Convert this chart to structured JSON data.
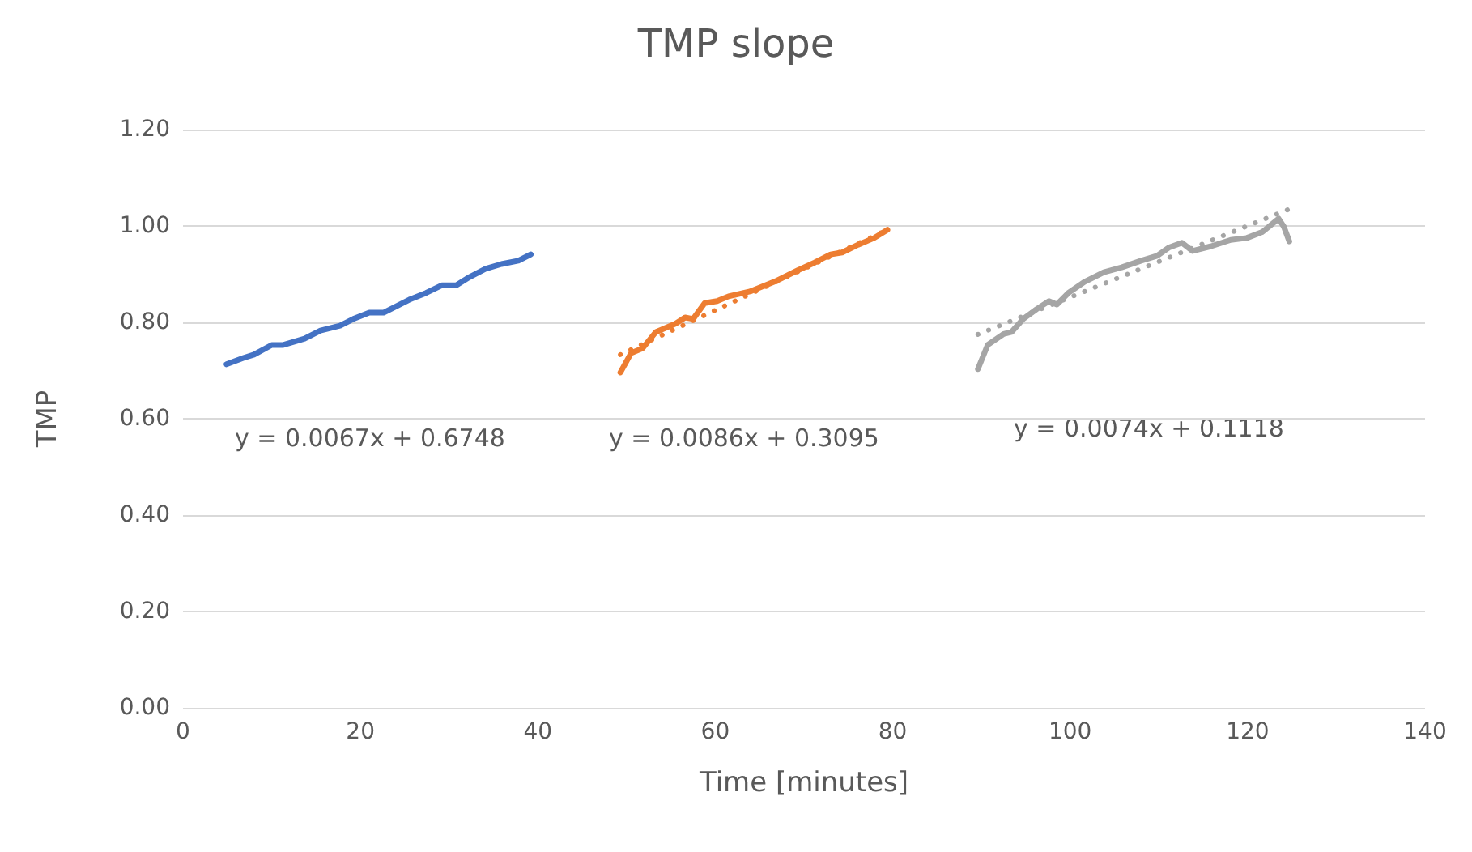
{
  "chart_data": {
    "type": "line",
    "title": "TMP slope",
    "xlabel": "Time [minutes]",
    "ylabel": "TMP",
    "xlim": [
      0,
      140
    ],
    "xticks": [
      0,
      20,
      40,
      60,
      80,
      100,
      120,
      140
    ],
    "ylim": [
      0,
      1.2
    ],
    "yticks": [
      {
        "value": 0,
        "label": "0.00"
      },
      {
        "value": 0.2,
        "label": "0.20"
      },
      {
        "value": 0.4,
        "label": "0.40"
      },
      {
        "value": 0.6,
        "label": "0.60"
      },
      {
        "value": 0.8,
        "label": "0.80"
      },
      {
        "value": 1.0,
        "label": "1.00"
      },
      {
        "value": 1.2,
        "label": "1.20"
      }
    ],
    "grid": "y",
    "marker": "none",
    "line_style": "solid",
    "series": [
      {
        "color": "#4472c4",
        "x": [
          4.9,
          6.8,
          8.0,
          10.0,
          11.3,
          13.7,
          15.5,
          17.7,
          19.2,
          21.0,
          22.6,
          24.1,
          25.5,
          27.4,
          29.2,
          30.8,
          32.3,
          34.1,
          35.9,
          37.8,
          39.2
        ],
        "values": [
          0.713,
          0.726,
          0.733,
          0.753,
          0.753,
          0.766,
          0.783,
          0.793,
          0.807,
          0.82,
          0.82,
          0.834,
          0.847,
          0.861,
          0.877,
          0.877,
          0.894,
          0.911,
          0.921,
          0.928,
          0.941
        ]
      },
      {
        "color": "#ed7d31",
        "x": [
          49.3,
          50.5,
          51.8,
          53.3,
          55.5,
          56.6,
          57.5,
          58.8,
          60.2,
          61.5,
          63.9,
          67.0,
          69.3,
          71.2,
          73.0,
          74.3,
          76.1,
          77.9,
          79.4
        ],
        "values": [
          0.696,
          0.736,
          0.746,
          0.78,
          0.797,
          0.81,
          0.807,
          0.84,
          0.844,
          0.854,
          0.864,
          0.887,
          0.908,
          0.924,
          0.941,
          0.945,
          0.961,
          0.975,
          0.992
        ]
      },
      {
        "color": "#a5a5a5",
        "x": [
          89.6,
          90.7,
          92.5,
          93.4,
          94.7,
          96.2,
          97.6,
          98.5,
          99.8,
          101.6,
          103.8,
          105.8,
          108.0,
          109.8,
          111.1,
          112.6,
          113.8,
          115.9,
          118.1,
          119.9,
          121.7,
          123.5,
          124.1,
          124.7
        ],
        "values": [
          0.703,
          0.753,
          0.776,
          0.78,
          0.807,
          0.827,
          0.844,
          0.837,
          0.861,
          0.884,
          0.904,
          0.914,
          0.928,
          0.938,
          0.955,
          0.965,
          0.948,
          0.958,
          0.971,
          0.975,
          0.988,
          1.015,
          0.998,
          0.968
        ]
      },
      {
        "color": "#ed7d31",
        "line_style": "dotted",
        "x": [
          49.3,
          79.4
        ],
        "values": [
          0.733,
          0.992
        ]
      },
      {
        "color": "#a5a5a5",
        "line_style": "dotted",
        "x": [
          89.6,
          124.7
        ],
        "values": [
          0.775,
          1.035
        ]
      }
    ],
    "annotations": [
      "y = 0.0067x + 0.6748",
      "y = 0.0086x + 0.3095",
      "y = 0.0074x + 0.1118"
    ]
  }
}
